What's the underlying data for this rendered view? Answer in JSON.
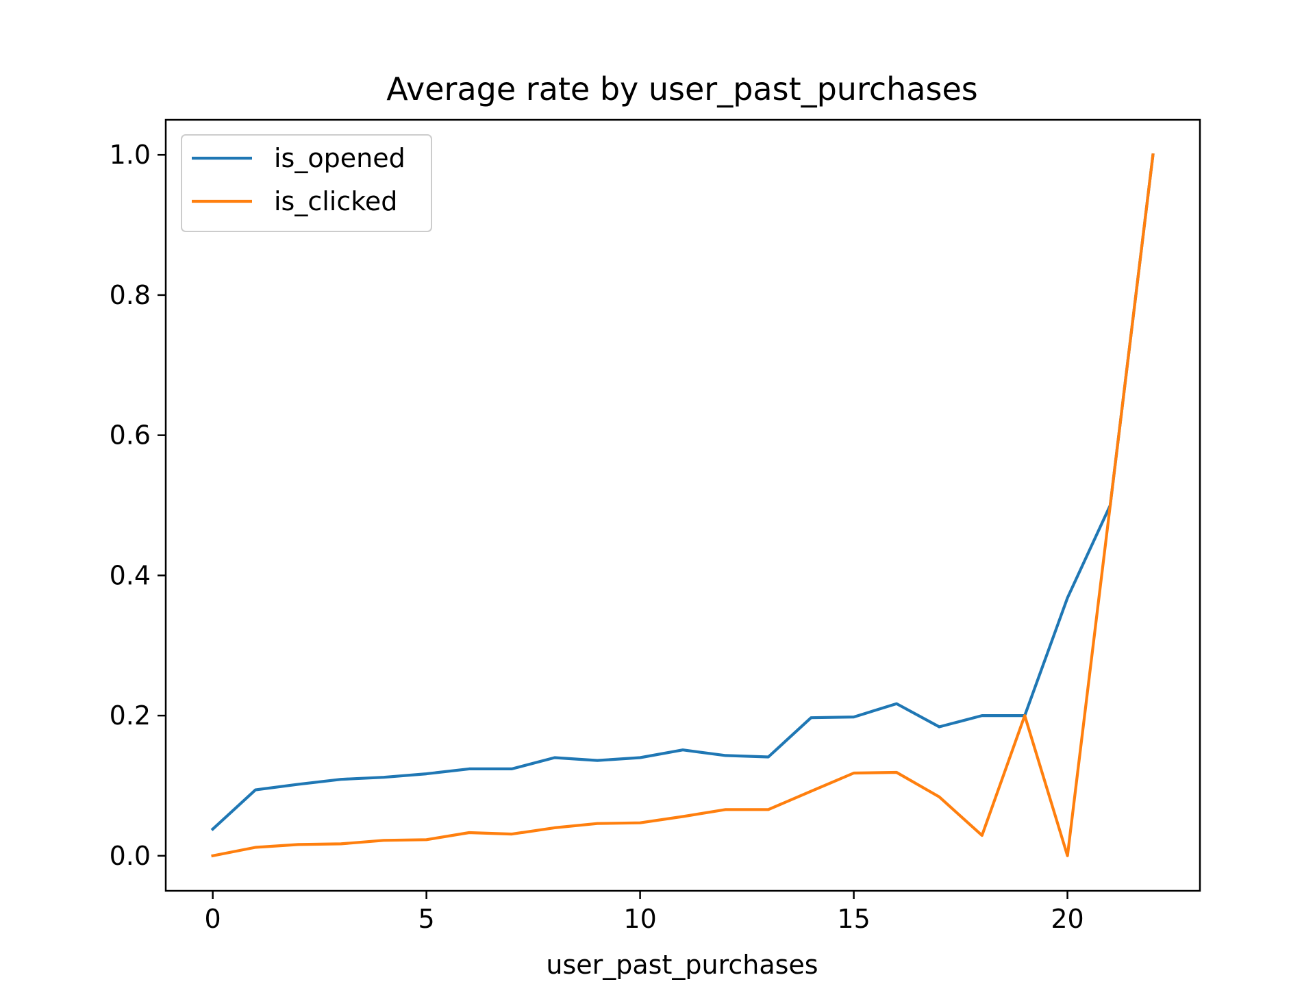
{
  "chart_data": {
    "type": "line",
    "title": "Average rate by user_past_purchases",
    "xlabel": "user_past_purchases",
    "ylabel": "",
    "xlim": [
      -1.1,
      23.1
    ],
    "ylim": [
      -0.05,
      1.05
    ],
    "x": [
      0,
      1,
      2,
      3,
      4,
      5,
      6,
      7,
      8,
      9,
      10,
      11,
      12,
      13,
      14,
      15,
      16,
      17,
      18,
      19,
      20,
      21,
      22
    ],
    "x_ticks": [
      0,
      5,
      10,
      15,
      20
    ],
    "x_tick_labels": [
      "0",
      "5",
      "10",
      "15",
      "20"
    ],
    "y_ticks": [
      0.0,
      0.2,
      0.4,
      0.6,
      0.8,
      1.0
    ],
    "y_tick_labels": [
      "0.0",
      "0.2",
      "0.4",
      "0.6",
      "0.8",
      "1.0"
    ],
    "grid": false,
    "legend_position": "top-left",
    "series": [
      {
        "name": "is_opened",
        "color": "#1f77b4",
        "values": [
          0.038,
          0.094,
          0.102,
          0.109,
          0.112,
          0.117,
          0.124,
          0.124,
          0.14,
          0.136,
          0.14,
          0.151,
          0.143,
          0.141,
          0.197,
          0.198,
          0.217,
          0.184,
          0.2,
          0.2,
          0.368,
          0.5,
          1.0
        ]
      },
      {
        "name": "is_clicked",
        "color": "#ff7f0e",
        "values": [
          0.0,
          0.012,
          0.016,
          0.017,
          0.022,
          0.023,
          0.033,
          0.031,
          0.04,
          0.046,
          0.047,
          0.056,
          0.066,
          0.066,
          0.092,
          0.118,
          0.119,
          0.084,
          0.029,
          0.2,
          0.0,
          0.5,
          1.0
        ]
      }
    ]
  }
}
